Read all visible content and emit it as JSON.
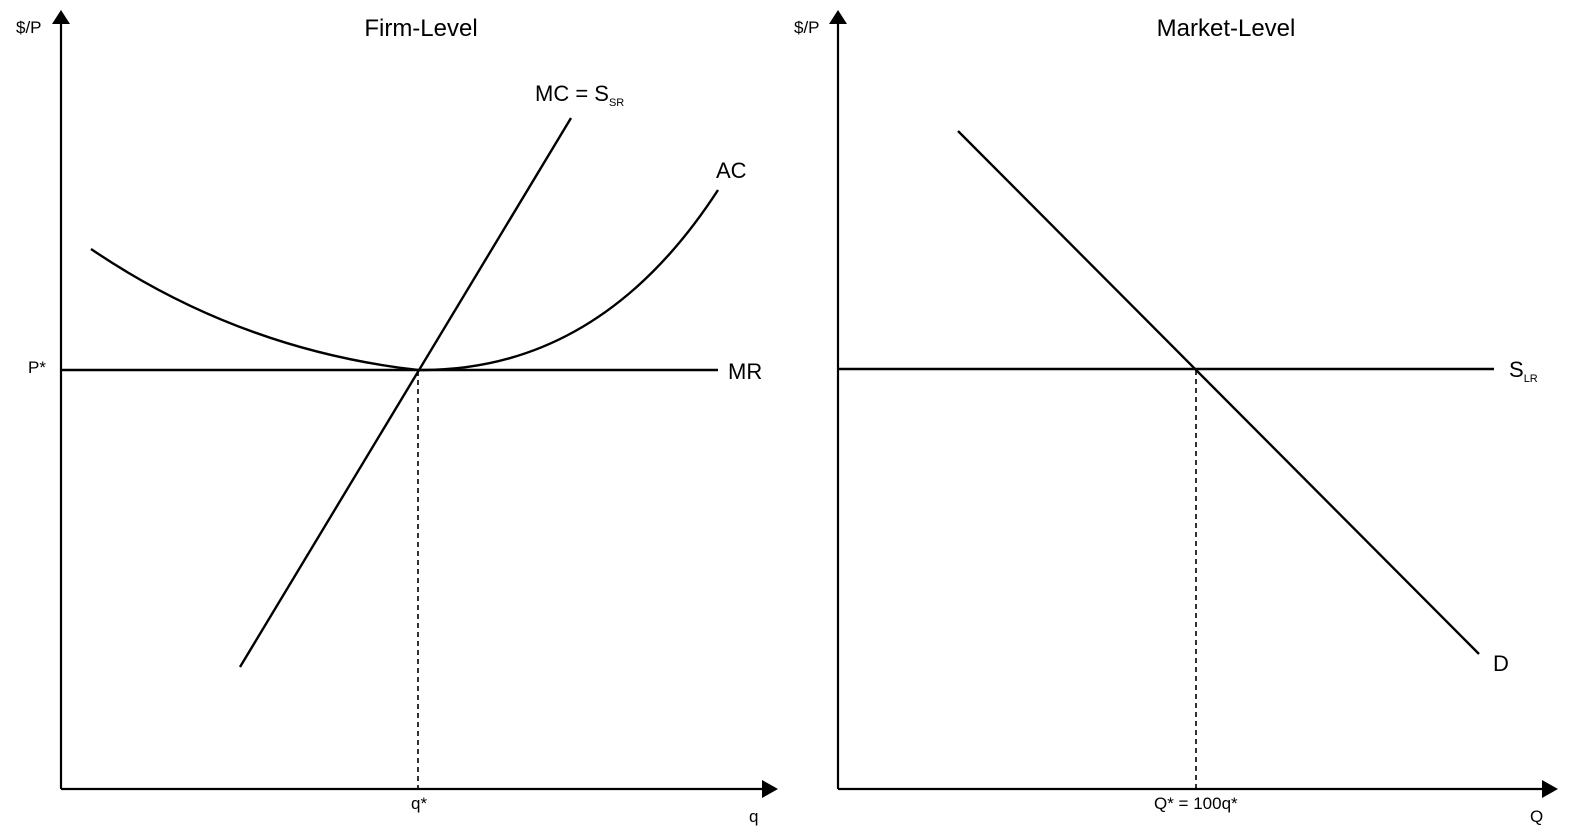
{
  "firm": {
    "title": "Firm-Level",
    "y_axis_label": "$/P",
    "x_axis_label": "q",
    "price_label": "P*",
    "quantity_label": "q*",
    "mc_label_main": "MC = S",
    "mc_label_sub": "SR",
    "ac_label": "AC",
    "mr_label": "MR"
  },
  "market": {
    "title": "Market-Level",
    "y_axis_label": "$/P",
    "x_axis_label": "Q",
    "quantity_label": "Q* = 100q*",
    "supply_label_main": "S",
    "supply_label_sub": "LR",
    "demand_label": "D"
  },
  "colors": {
    "line": "#000000",
    "background": "#ffffff"
  }
}
